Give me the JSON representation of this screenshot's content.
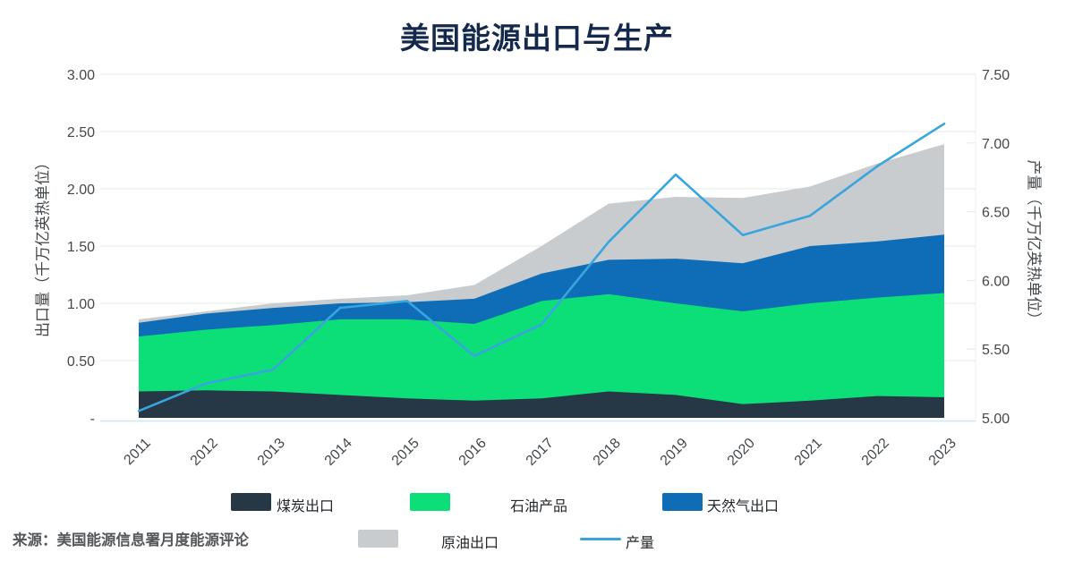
{
  "title": "美国能源出口与生产",
  "source_note": "来源：美国能源信息署月度能源评论",
  "left_axis": {
    "label": "出口量（千万亿英热单位）",
    "ticks": [
      "3.00",
      "2.50",
      "2.00",
      "1.50",
      "1.00",
      "0.50",
      "-"
    ],
    "min": 0,
    "max": 3
  },
  "right_axis": {
    "label": "产量（千万亿英热单位）",
    "ticks": [
      "7.50",
      "7.00",
      "6.50",
      "6.00",
      "5.50",
      "5.00"
    ],
    "min": 5,
    "max": 7.5
  },
  "colors": {
    "title": "#15294d",
    "coal": "#263746",
    "petroleum": "#0cdf78",
    "natural_gas": "#0e6db6",
    "crude_oil": "#c8cccf",
    "production_line": "#38a5de",
    "gridline": "#e6e8ea",
    "baseline": "#cfe6f4",
    "tick_text": "#43484c"
  },
  "chart_data": {
    "type": "area",
    "title": "美国能源出口与生产",
    "xlabel": "",
    "ylabel_left": "出口量（千万亿英热单位）",
    "ylabel_right": "产量（千万亿英热单位）",
    "ylim_left": [
      0,
      3
    ],
    "ylim_right": [
      5,
      7.5
    ],
    "grid": true,
    "legend_position": "bottom",
    "x": [
      2011,
      2012,
      2013,
      2014,
      2015,
      2016,
      2017,
      2018,
      2019,
      2020,
      2021,
      2022,
      2023
    ],
    "series": [
      {
        "name": "煤炭出口",
        "type": "area-stacked",
        "axis": "left",
        "color": "#263746",
        "values": [
          0.23,
          0.24,
          0.23,
          0.2,
          0.17,
          0.15,
          0.17,
          0.23,
          0.2,
          0.12,
          0.15,
          0.19,
          0.18
        ]
      },
      {
        "name": "石油产品",
        "type": "area-stacked",
        "axis": "left",
        "color": "#0cdf78",
        "values": [
          0.48,
          0.53,
          0.58,
          0.66,
          0.69,
          0.67,
          0.85,
          0.85,
          0.8,
          0.81,
          0.85,
          0.86,
          0.91
        ]
      },
      {
        "name": "天然气出口",
        "type": "area-stacked",
        "axis": "left",
        "color": "#0e6db6",
        "values": [
          0.12,
          0.14,
          0.15,
          0.14,
          0.15,
          0.22,
          0.24,
          0.3,
          0.39,
          0.42,
          0.5,
          0.49,
          0.51
        ]
      },
      {
        "name": "原油出口",
        "type": "area-stacked",
        "axis": "left",
        "color": "#c8cccf",
        "values": [
          0.03,
          0.02,
          0.04,
          0.04,
          0.06,
          0.12,
          0.24,
          0.49,
          0.54,
          0.57,
          0.52,
          0.68,
          0.79
        ]
      },
      {
        "name": "产量",
        "type": "line",
        "axis": "right",
        "color": "#38a5de",
        "values": [
          5.05,
          5.25,
          5.35,
          5.8,
          5.85,
          5.45,
          5.68,
          6.28,
          6.77,
          6.33,
          6.47,
          6.83,
          7.14
        ]
      }
    ]
  },
  "legend": {
    "row1": [
      {
        "label": "煤炭出口",
        "series": 0
      },
      {
        "label": "石油产品",
        "series": 1
      },
      {
        "label": "天然气出口",
        "series": 2
      }
    ],
    "row2": [
      {
        "label": "原油出口",
        "series": 3
      },
      {
        "label": "产量",
        "series": 4
      }
    ]
  }
}
